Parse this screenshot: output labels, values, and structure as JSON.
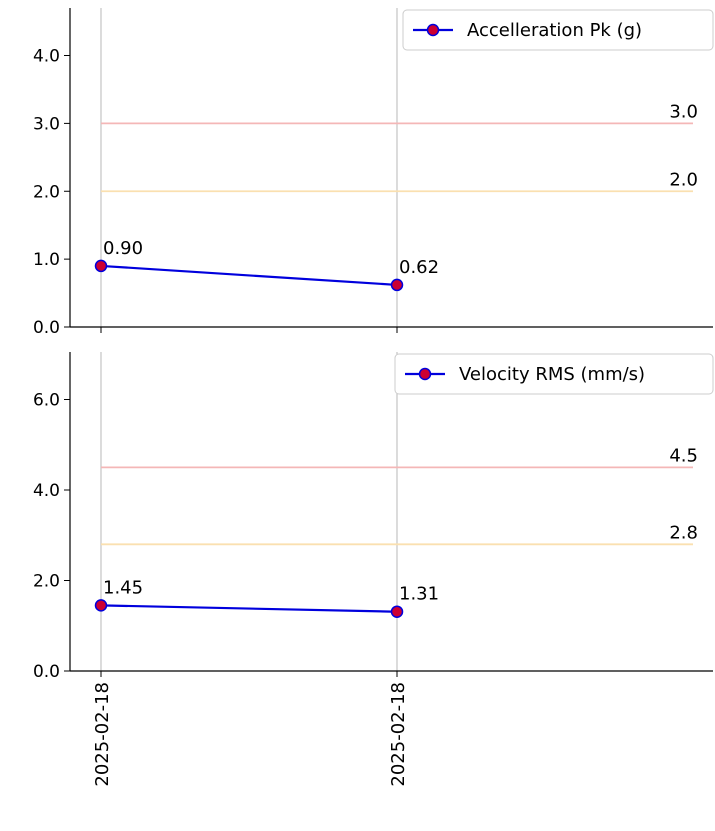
{
  "chart_data": [
    {
      "type": "line",
      "x": [
        "2025-02-18",
        "2025-02-18"
      ],
      "series": [
        {
          "name": "Accelleration Pk (g)",
          "values": [
            0.9,
            0.62
          ],
          "data_labels": [
            "0.90",
            "0.62"
          ],
          "line_color": "#0000dd",
          "marker_color": "#cc0033"
        }
      ],
      "thresholds": [
        {
          "value": 3.0,
          "label": "3.0",
          "color": "#f4b7b7"
        },
        {
          "value": 2.0,
          "label": "2.0",
          "color": "#fae0b0"
        }
      ],
      "ylim": [
        0,
        4.7
      ],
      "yticks": [
        0,
        1,
        2,
        3,
        4
      ],
      "ytick_labels": [
        "0.0",
        "1.0",
        "2.0",
        "3.0",
        "4.0"
      ],
      "grid": "x-only",
      "legend": "top-right"
    },
    {
      "type": "line",
      "x": [
        "2025-02-18",
        "2025-02-18"
      ],
      "series": [
        {
          "name": "Velocity RMS (mm/s)",
          "values": [
            1.45,
            1.31
          ],
          "data_labels": [
            "1.45",
            "1.31"
          ],
          "line_color": "#0000dd",
          "marker_color": "#cc0033"
        }
      ],
      "thresholds": [
        {
          "value": 4.5,
          "label": "4.5",
          "color": "#f4b7b7"
        },
        {
          "value": 2.8,
          "label": "2.8",
          "color": "#fae0b0"
        }
      ],
      "ylim": [
        0,
        7.05
      ],
      "yticks": [
        0,
        2,
        4,
        6
      ],
      "ytick_labels": [
        "0.0",
        "2.0",
        "4.0",
        "6.0"
      ],
      "grid": "x-only",
      "legend": "top-right"
    }
  ],
  "x_tick_labels": [
    "2025-02-18",
    "2025-02-18"
  ]
}
